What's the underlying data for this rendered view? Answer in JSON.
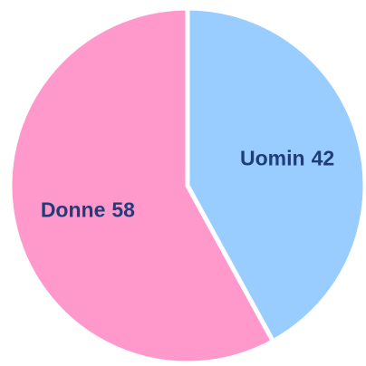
{
  "chart_data": {
    "type": "pie",
    "categories": [
      "Uomin",
      "Donne"
    ],
    "values": [
      42,
      58
    ],
    "colors": [
      "#99ccff",
      "#ff99cc"
    ]
  }
}
